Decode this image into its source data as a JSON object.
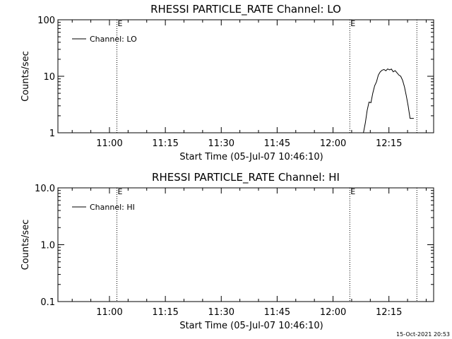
{
  "footer": {
    "timestamp": "15-Oct-2021 20:53"
  },
  "chart_data": [
    {
      "type": "line",
      "title": "RHESSI PARTICLE_RATE Channel: LO",
      "xlabel": "Start Time (05-Jul-07 10:46:10)",
      "ylabel": "Counts/sec",
      "y_scale": "log",
      "ylim": [
        1,
        100
      ],
      "xlim": [
        "10:46:10",
        "12:27:00"
      ],
      "x_ticks": [
        "11:00",
        "11:15",
        "11:30",
        "11:45",
        "12:00",
        "12:15"
      ],
      "y_ticks": [
        "1",
        "10",
        "100"
      ],
      "event_markers": [
        {
          "time": "11:02:00",
          "label": "E"
        },
        {
          "time": "12:04:30",
          "label": "E"
        },
        {
          "time": "12:22:30",
          "label": ""
        }
      ],
      "legend": {
        "entries": [
          "Channel: LO"
        ],
        "position": "top-left"
      },
      "series": [
        {
          "name": "Channel: LO",
          "x": [
            "12:08:10",
            "12:08:40",
            "12:09:10",
            "12:09:40",
            "12:10:10",
            "12:10:40",
            "12:11:10",
            "12:11:40",
            "12:12:10",
            "12:12:40",
            "12:13:10",
            "12:13:40",
            "12:14:10",
            "12:14:40",
            "12:15:10",
            "12:15:40",
            "12:16:10",
            "12:16:40",
            "12:17:10",
            "12:17:40",
            "12:18:10",
            "12:18:40",
            "12:19:10",
            "12:19:40",
            "12:20:10",
            "12:20:40",
            "12:21:10",
            "12:21:40"
          ],
          "values": [
            1.0,
            1.5,
            2.5,
            3.5,
            3.4,
            5.0,
            6.8,
            8.0,
            10.5,
            12.0,
            12.8,
            13.2,
            12.5,
            13.5,
            13.0,
            13.4,
            12.0,
            12.6,
            11.5,
            10.5,
            10.0,
            8.5,
            6.5,
            4.5,
            3.0,
            1.8,
            1.8,
            1.8
          ]
        }
      ]
    },
    {
      "type": "line",
      "title": "RHESSI PARTICLE_RATE Channel: HI",
      "xlabel": "Start Time (05-Jul-07 10:46:10)",
      "ylabel": "Counts/sec",
      "y_scale": "log",
      "ylim": [
        0.1,
        10
      ],
      "xlim": [
        "10:46:10",
        "12:27:00"
      ],
      "x_ticks": [
        "11:00",
        "11:15",
        "11:30",
        "11:45",
        "12:00",
        "12:15"
      ],
      "y_ticks": [
        "0.1",
        "1.0",
        "10.0"
      ],
      "event_markers": [
        {
          "time": "11:02:00",
          "label": "E"
        },
        {
          "time": "12:04:30",
          "label": "E"
        },
        {
          "time": "12:22:30",
          "label": ""
        }
      ],
      "legend": {
        "entries": [
          "Channel: HI"
        ],
        "position": "top-left"
      },
      "series": [
        {
          "name": "Channel: HI",
          "x": [],
          "values": []
        }
      ]
    }
  ]
}
